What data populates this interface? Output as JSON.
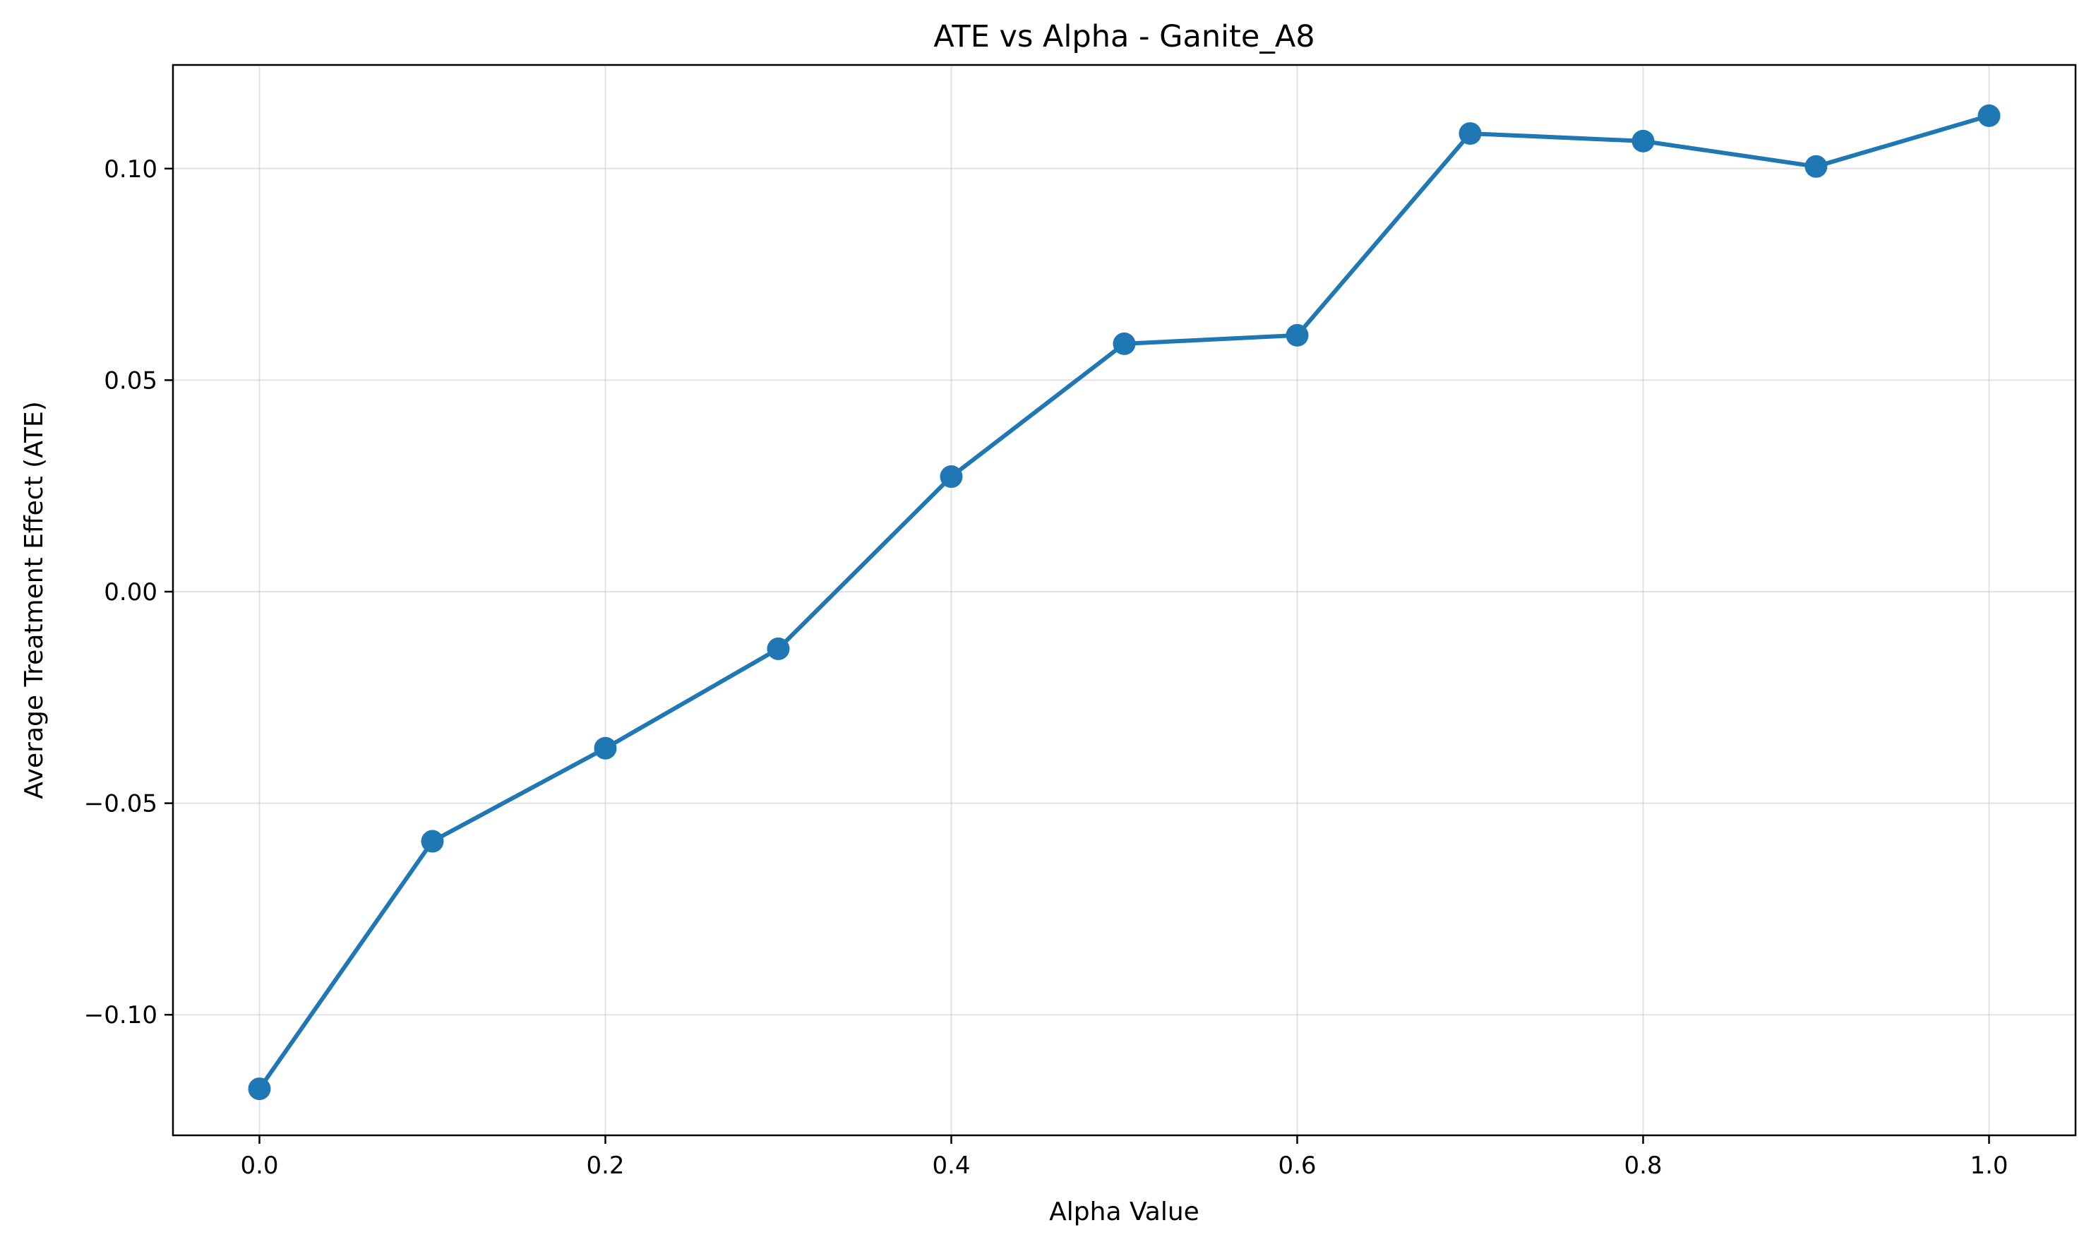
{
  "chart_data": {
    "type": "line",
    "title": "ATE vs Alpha - Ganite_A8",
    "xlabel": "Alpha Value",
    "ylabel": "Average Treatment Effect (ATE)",
    "xlim": [
      -0.05,
      1.05
    ],
    "ylim": [
      -0.1285,
      0.1245
    ],
    "x_ticks": [
      0.0,
      0.2,
      0.4,
      0.6,
      0.8,
      1.0
    ],
    "x_tick_labels": [
      "0.0",
      "0.2",
      "0.4",
      "0.6",
      "0.8",
      "1.0"
    ],
    "y_ticks": [
      -0.1,
      -0.05,
      0.0,
      0.05,
      0.1
    ],
    "y_tick_labels": [
      "−0.10",
      "−0.05",
      "0.00",
      "0.05",
      "0.10"
    ],
    "grid": true,
    "series": [
      {
        "color": "#1f77b4",
        "marker": "circle",
        "x": [
          0.0,
          0.1,
          0.2,
          0.3,
          0.4,
          0.5,
          0.6,
          0.7,
          0.8,
          0.9,
          1.0
        ],
        "y": [
          -0.1175,
          -0.059,
          -0.037,
          -0.0135,
          0.0272,
          0.0586,
          0.0606,
          0.1083,
          0.1065,
          0.1005,
          0.1125
        ]
      }
    ]
  }
}
